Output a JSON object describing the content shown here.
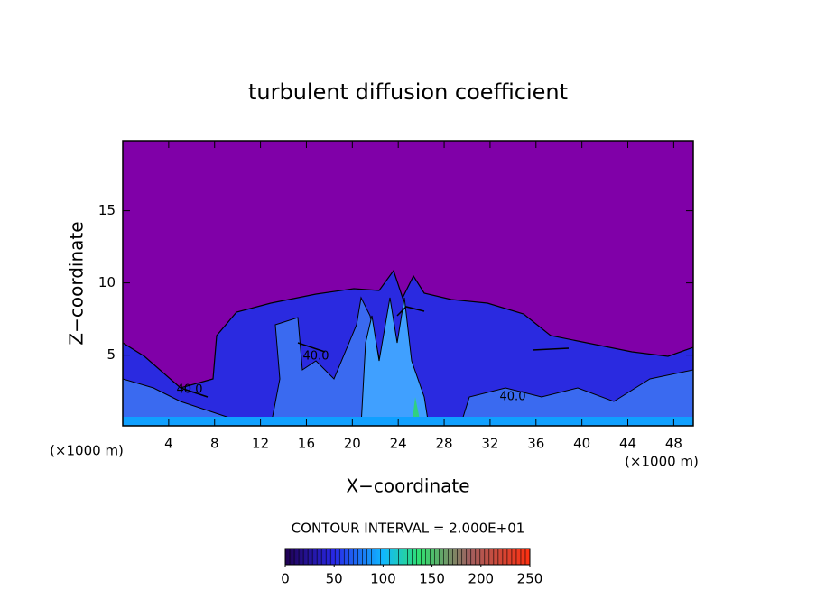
{
  "chart_data": {
    "type": "contour",
    "title": "turbulent diffusion coefficient",
    "x_label": "X−coordinate",
    "y_label": "Z−coordinate",
    "x_unit": "(×1000 m)",
    "y_unit": "(×1000 m)",
    "xlim": [
      0,
      49.7
    ],
    "ylim": [
      0.1,
      19.85
    ],
    "xticks": [
      4,
      8,
      12,
      16,
      20,
      24,
      28,
      32,
      36,
      40,
      44,
      48
    ],
    "yticks": [
      5,
      10,
      15
    ],
    "grid": false,
    "contour_interval": "CONTOUR INTERVAL = 2.000E+01",
    "colorbar": {
      "lim": [
        0,
        250
      ],
      "ticks": [
        0,
        50,
        100,
        150,
        200,
        250
      ]
    },
    "annotations": [
      "40.0",
      "40.0",
      "40.0"
    ]
  }
}
